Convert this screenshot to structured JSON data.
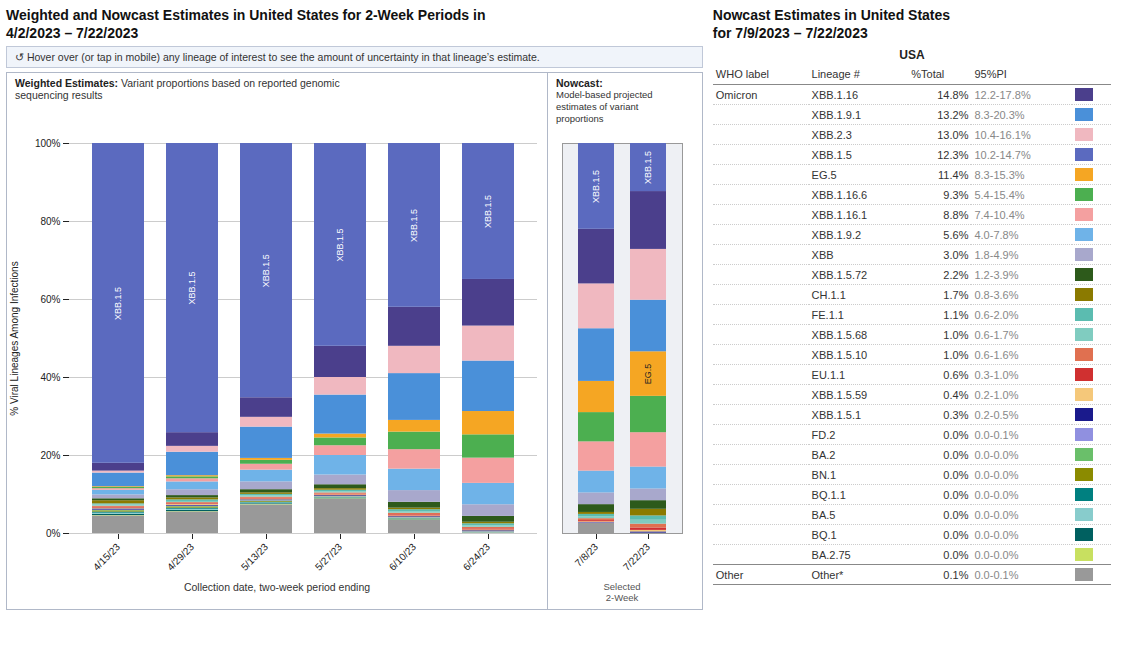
{
  "chart_data": [
    {
      "type": "bar",
      "stacked": true,
      "title": "Weighted and Nowcast Estimates in United States for 2-Week Periods in\n4/2/2023 – 7/22/2023",
      "subtitle": "↺ Hover over (or tap in mobile) any lineage of interest to see the amount of uncertainty in that lineage’s estimate.",
      "xlabel": "Collection date, two-week period ending",
      "ylabel": "% Viral Lineages Among Infections",
      "categories": [
        "4/15/23",
        "4/29/23",
        "5/13/23",
        "5/27/23",
        "6/10/23",
        "6/24/23"
      ],
      "series": [
        {
          "name": "Other",
          "color": "#999999",
          "values": [
            4.5,
            5.511,
            7.322,
            8.8,
            3.4,
            0.0996
          ]
        },
        {
          "name": "BA.2.75",
          "color": "#c8e060",
          "values": [
            0.1,
            0.1002,
            0.1003,
            0.1,
            0.1,
            0.0498
          ]
        },
        {
          "name": "BQ.1",
          "color": "#006060",
          "values": [
            0.3,
            0.3006,
            0.2006,
            0.1,
            0.1,
            0.0498
          ]
        },
        {
          "name": "BA.5",
          "color": "#88cccc",
          "values": [
            0.3,
            0.3006,
            0.2006,
            0.1,
            0.1,
            0.0498
          ]
        },
        {
          "name": "BQ.1.1",
          "color": "#008080",
          "values": [
            0.3,
            0.3006,
            0.2006,
            0.1,
            0.1,
            0.0498
          ]
        },
        {
          "name": "BN.1",
          "color": "#8b8b00",
          "values": [
            0.3,
            0.3006,
            0.2006,
            0.1,
            0.1,
            0.0498
          ]
        },
        {
          "name": "BA.2",
          "color": "#6abf6a",
          "values": [
            0.1,
            0.1002,
            0.1003,
            0.1,
            0.1,
            0.0498
          ]
        },
        {
          "name": "FD.2",
          "color": "#9090e0",
          "values": [
            0.1,
            0.1002,
            0.1003,
            0.1,
            0.1,
            0.0996
          ]
        },
        {
          "name": "XBB.1.5.1",
          "color": "#1a1a8c",
          "values": [
            0.3,
            0.2004,
            0.2006,
            0.2,
            0.2,
            0.1992
          ]
        },
        {
          "name": "XBB.1.5.59",
          "color": "#f5c87a",
          "values": [
            0.2,
            0.2004,
            0.2006,
            0.2,
            0.2,
            0.1992
          ]
        },
        {
          "name": "EU.1.1",
          "color": "#d03030",
          "values": [
            0.2,
            0.2004,
            0.2006,
            0.2,
            0.3,
            0.2988
          ]
        },
        {
          "name": "XBB.1.5.10",
          "color": "#e07050",
          "values": [
            0.3,
            0.3006,
            0.3009,
            0.3,
            0.4,
            0.3984
          ]
        },
        {
          "name": "XBB.1.5.68",
          "color": "#80ccc0",
          "values": [
            0.3,
            0.3006,
            0.3009,
            0.3,
            0.4,
            0.3984
          ]
        },
        {
          "name": "FE.1.1",
          "color": "#5bbcb0",
          "values": [
            0.3,
            0.4008,
            0.4012,
            0.4,
            0.5,
            0.498
          ]
        },
        {
          "name": "CH.1.1",
          "color": "#8b7a00",
          "values": [
            0.8,
            0.501,
            0.4012,
            0.4,
            0.4,
            0.3984
          ]
        },
        {
          "name": "XBB.1.5.72",
          "color": "#2d5a1b",
          "values": [
            0.5,
            0.6012,
            0.8024,
            1.0,
            1.5,
            1.494
          ]
        },
        {
          "name": "XBB",
          "color": "#a8a8cc",
          "values": [
            1.0,
            1.503,
            2.006,
            2.5,
            3.0,
            2.988
          ]
        },
        {
          "name": "XBB.1.9.2",
          "color": "#6fb3e8",
          "values": [
            1.2,
            2.004,
            3.009,
            5.0,
            5.5,
            5.4781
          ]
        },
        {
          "name": "XBB.1.16.1",
          "color": "#f4a0a0",
          "values": [
            0.4,
            0.8016,
            1.5045,
            2.5,
            5.0,
            6.4741
          ]
        },
        {
          "name": "XBB.1.16.6",
          "color": "#4caf50",
          "values": [
            0.3,
            0.501,
            1.003,
            2.0,
            4.5,
            5.9761
          ]
        },
        {
          "name": "EG.5",
          "color": "#f5a623",
          "values": [
            0.2,
            0.3006,
            0.5015,
            1.0,
            3.0,
            5.9761
          ]
        },
        {
          "name": "XBB.1.9.1",
          "color": "#4a90d9",
          "values": [
            3.5,
            6.012,
            8.0241,
            10.0,
            12.0,
            12.9482
          ]
        },
        {
          "name": "XBB.2.3",
          "color": "#f0b8c0",
          "values": [
            0.5,
            1.503,
            2.5075,
            4.5,
            7.0,
            8.9641
          ]
        },
        {
          "name": "XBB.1.16",
          "color": "#4b3f8c",
          "values": [
            2.0,
            3.507,
            5.015,
            8.0,
            10.0,
            11.9522
          ]
        },
        {
          "name": "XBB.1.5",
          "color": "#5b6abf",
          "values": [
            82.0,
            74.1483,
            65.1956,
            52.0,
            42.0,
            34.8606
          ]
        }
      ],
      "ylim": [
        0,
        100
      ],
      "yticks": [
        {
          "value": 0,
          "label": "0%"
        },
        {
          "value": 20,
          "label": "20%"
        },
        {
          "value": 40,
          "label": "40%"
        },
        {
          "value": 60,
          "label": "60%"
        },
        {
          "value": 80,
          "label": "80%"
        },
        {
          "value": 100,
          "label": "100%"
        }
      ],
      "grid": true,
      "annotations": [
        {
          "text": "Weighted Estimates:"
        },
        {
          "text": " Variant proportions based on reported genomic\nsequencing results"
        },
        {
          "text": "XBB.1.5",
          "x": "4/15/23",
          "series": "XBB.1.5"
        },
        {
          "text": "XBB.1.5",
          "x": "4/29/23",
          "series": "XBB.1.5"
        },
        {
          "text": "XBB.1.5",
          "x": "5/13/23",
          "series": "XBB.1.5"
        },
        {
          "text": "XBB.1.5",
          "x": "5/27/23",
          "series": "XBB.1.5"
        },
        {
          "text": "XBB.1.5",
          "x": "6/10/23",
          "series": "XBB.1.5"
        },
        {
          "text": "XBB.1.5",
          "x": "6/24/23",
          "series": "XBB.1.5"
        }
      ]
    },
    {
      "type": "bar",
      "stacked": true,
      "title": "Nowcast:",
      "subtitle": "Model-based projected\nestimates of variant\nproportions",
      "xlabel": "Selected\n2-Week",
      "categories": [
        "7/8/23",
        "7/22/23"
      ],
      "series": [
        {
          "name": "Other",
          "color": "#999999",
          "values": [
            2.6,
            0.1002
          ]
        },
        {
          "name": "BA.2.75",
          "color": "#c8e060",
          "values": [
            0.0,
            0.0
          ]
        },
        {
          "name": "BQ.1",
          "color": "#006060",
          "values": [
            0.0,
            0.0
          ]
        },
        {
          "name": "BA.5",
          "color": "#88cccc",
          "values": [
            0.0,
            0.0
          ]
        },
        {
          "name": "BQ.1.1",
          "color": "#008080",
          "values": [
            0.0,
            0.0
          ]
        },
        {
          "name": "BN.1",
          "color": "#8b8b00",
          "values": [
            0.0,
            0.0
          ]
        },
        {
          "name": "BA.2",
          "color": "#6abf6a",
          "values": [
            0.0,
            0.0
          ]
        },
        {
          "name": "FD.2",
          "color": "#9090e0",
          "values": [
            0.1,
            0.0
          ]
        },
        {
          "name": "XBB.1.5.1",
          "color": "#1a1a8c",
          "values": [
            0.1,
            0.3006
          ]
        },
        {
          "name": "XBB.1.5.59",
          "color": "#f5c87a",
          "values": [
            0.2,
            0.4008
          ]
        },
        {
          "name": "EU.1.1",
          "color": "#d03030",
          "values": [
            0.3,
            0.6012
          ]
        },
        {
          "name": "XBB.1.5.10",
          "color": "#e07050",
          "values": [
            0.5,
            1.002
          ]
        },
        {
          "name": "XBB.1.5.68",
          "color": "#80ccc0",
          "values": [
            0.5,
            1.002
          ]
        },
        {
          "name": "FE.1.1",
          "color": "#5bbcb0",
          "values": [
            0.6,
            1.1022
          ]
        },
        {
          "name": "CH.1.1",
          "color": "#8b7a00",
          "values": [
            0.5,
            1.7034
          ]
        },
        {
          "name": "XBB.1.5.72",
          "color": "#2d5a1b",
          "values": [
            2.0,
            2.2044
          ]
        },
        {
          "name": "XBB",
          "color": "#a8a8cc",
          "values": [
            3.0,
            3.006
          ]
        },
        {
          "name": "XBB.1.9.2",
          "color": "#6fb3e8",
          "values": [
            5.6,
            5.6112
          ]
        },
        {
          "name": "XBB.1.16.1",
          "color": "#f4a0a0",
          "values": [
            7.5,
            8.8176
          ]
        },
        {
          "name": "XBB.1.16.6",
          "color": "#4caf50",
          "values": [
            7.5,
            9.3186
          ]
        },
        {
          "name": "EG.5",
          "color": "#f5a623",
          "values": [
            8.0,
            11.4228
          ]
        },
        {
          "name": "XBB.1.9.1",
          "color": "#4a90d9",
          "values": [
            13.5,
            13.2265
          ]
        },
        {
          "name": "XBB.2.3",
          "color": "#f0b8c0",
          "values": [
            11.5,
            13.0261
          ]
        },
        {
          "name": "XBB.1.16",
          "color": "#4b3f8c",
          "values": [
            14.0,
            14.8297
          ]
        },
        {
          "name": "XBB.1.5",
          "color": "#5b6abf",
          "values": [
            22.0,
            12.3246
          ]
        }
      ],
      "ylim": [
        0,
        100
      ],
      "tick_labels": "x",
      "annotations": [
        {
          "text": "XBB.1.5",
          "x": "7/8/23",
          "series": "XBB.1.5"
        },
        {
          "text": "XBB.1.5",
          "x": "7/22/23",
          "series": "XBB.1.5"
        },
        {
          "text": "EG.5",
          "x": "7/22/23",
          "series": "EG.5"
        }
      ]
    },
    {
      "type": "table",
      "title": "Nowcast Estimates in United States\nfor 7/9/2023 – 7/22/2023",
      "subtitle": "USA",
      "columns": [
        "WHO label",
        "Lineage #",
        "%Total",
        "95%PI"
      ],
      "rows": [
        [
          "Omicron",
          "XBB.1.16",
          "14.8%",
          "12.2-17.8%",
          "#4b3f8c"
        ],
        [
          null,
          "XBB.1.9.1",
          "13.2%",
          "8.3-20.3%",
          "#4a90d9"
        ],
        [
          null,
          "XBB.2.3",
          "13.0%",
          "10.4-16.1%",
          "#f0b8c0"
        ],
        [
          null,
          "XBB.1.5",
          "12.3%",
          "10.2-14.7%",
          "#5b6abf"
        ],
        [
          null,
          "EG.5",
          "11.4%",
          "8.3-15.3%",
          "#f5a623"
        ],
        [
          null,
          "XBB.1.16.6",
          "9.3%",
          "5.4-15.4%",
          "#4caf50"
        ],
        [
          null,
          "XBB.1.16.1",
          "8.8%",
          "7.4-10.4%",
          "#f4a0a0"
        ],
        [
          null,
          "XBB.1.9.2",
          "5.6%",
          "4.0-7.8%",
          "#6fb3e8"
        ],
        [
          null,
          "XBB",
          "3.0%",
          "1.8-4.9%",
          "#a8a8cc"
        ],
        [
          null,
          "XBB.1.5.72",
          "2.2%",
          "1.2-3.9%",
          "#2d5a1b"
        ],
        [
          null,
          "CH.1.1",
          "1.7%",
          "0.8-3.6%",
          "#8b7a00"
        ],
        [
          null,
          "FE.1.1",
          "1.1%",
          "0.6-2.0%",
          "#5bbcb0"
        ],
        [
          null,
          "XBB.1.5.68",
          "1.0%",
          "0.6-1.7%",
          "#80ccc0"
        ],
        [
          null,
          "XBB.1.5.10",
          "1.0%",
          "0.6-1.6%",
          "#e07050"
        ],
        [
          null,
          "EU.1.1",
          "0.6%",
          "0.3-1.0%",
          "#d03030"
        ],
        [
          null,
          "XBB.1.5.59",
          "0.4%",
          "0.2-1.0%",
          "#f5c87a"
        ],
        [
          null,
          "XBB.1.5.1",
          "0.3%",
          "0.2-0.5%",
          "#1a1a8c"
        ],
        [
          null,
          "FD.2",
          "0.0%",
          "0.0-0.1%",
          "#9090e0"
        ],
        [
          null,
          "BA.2",
          "0.0%",
          "0.0-0.0%",
          "#6abf6a"
        ],
        [
          null,
          "BN.1",
          "0.0%",
          "0.0-0.0%",
          "#8b8b00"
        ],
        [
          null,
          "BQ.1.1",
          "0.0%",
          "0.0-0.0%",
          "#008080"
        ],
        [
          null,
          "BA.5",
          "0.0%",
          "0.0-0.0%",
          "#88cccc"
        ],
        [
          null,
          "BQ.1",
          "0.0%",
          "0.0-0.0%",
          "#006060"
        ],
        [
          null,
          "BA.2.75",
          "0.0%",
          "0.0-0.0%",
          "#c8e060"
        ],
        [
          "Other",
          "Other*",
          "0.1%",
          "0.0-0.1%",
          "#999999"
        ]
      ]
    }
  ]
}
